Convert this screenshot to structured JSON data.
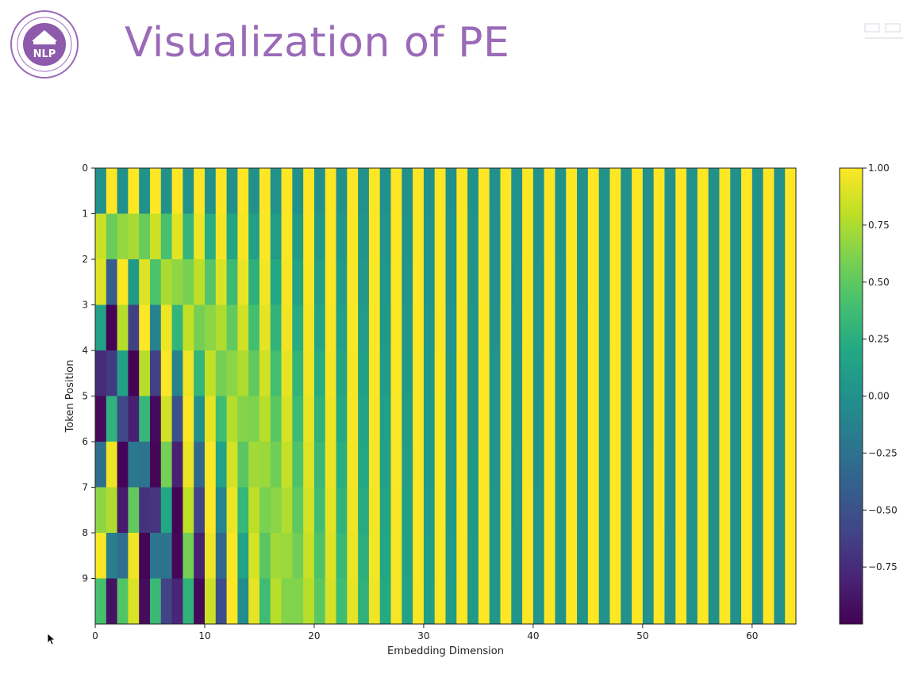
{
  "slide": {
    "title": "Visualization of PE",
    "logo_text": "NLP"
  },
  "chart_data": {
    "type": "heatmap",
    "title": "",
    "xlabel": "Embedding Dimension",
    "ylabel": "Token Position",
    "xlim": [
      0,
      64
    ],
    "ylim": [
      0,
      10
    ],
    "x_ticks": [
      0,
      10,
      20,
      30,
      40,
      50,
      60
    ],
    "y_ticks": [
      0,
      1,
      2,
      3,
      4,
      5,
      6,
      7,
      8,
      9
    ],
    "rows": 10,
    "cols": 64,
    "function": "positional encoding: even dims = sin(pos / 10000^(i/64)), odd dims = cos(pos / 10000^((i-1)/64))",
    "colormap": "viridis",
    "colorbar": {
      "min": -1.0,
      "max": 1.0,
      "ticks": [
        1.0,
        0.75,
        0.5,
        0.25,
        0.0,
        -0.25,
        -0.5,
        -0.75
      ],
      "tick_labels": [
        "1.00",
        "0.75",
        "0.50",
        "0.25",
        "0.00",
        "−0.25",
        "−0.50",
        "−0.75"
      ]
    },
    "colors": {
      "low": "#440154",
      "mid": "#21918c",
      "high": "#fde725"
    }
  }
}
